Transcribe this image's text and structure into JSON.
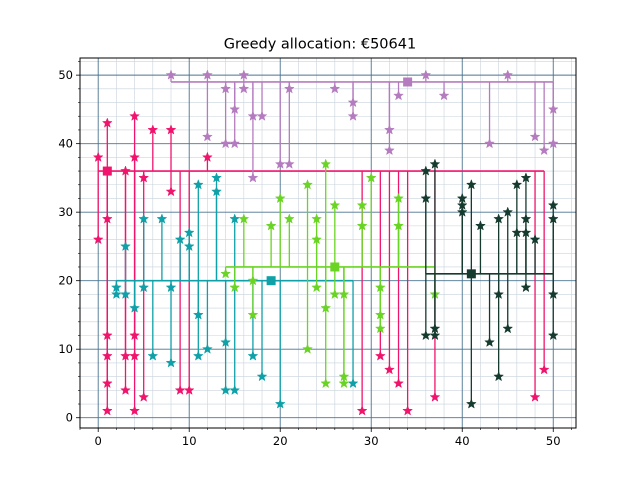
{
  "chart_data": {
    "type": "scatter",
    "title": "Greedy allocation: €50641",
    "xlabel": "",
    "ylabel": "",
    "xlim": [
      -2,
      52.5
    ],
    "ylim": [
      -1.5,
      52.5
    ],
    "x_ticks": [
      0,
      10,
      20,
      30,
      40,
      50
    ],
    "y_ticks": [
      0,
      10,
      20,
      30,
      40,
      50
    ],
    "grid": "major and minor",
    "legend": "none",
    "series": [
      {
        "color": "#f0146c",
        "center": [
          1,
          36
        ],
        "trunk_x": [
          0,
          49
        ],
        "points": [
          [
            0,
            38
          ],
          [
            0,
            26
          ],
          [
            1,
            43
          ],
          [
            1,
            29
          ],
          [
            1,
            12
          ],
          [
            1,
            9
          ],
          [
            1,
            5
          ],
          [
            1,
            1
          ],
          [
            3,
            36
          ],
          [
            3,
            9
          ],
          [
            3,
            4
          ],
          [
            4,
            44
          ],
          [
            4,
            38
          ],
          [
            4,
            12
          ],
          [
            4,
            9
          ],
          [
            4,
            1
          ],
          [
            5,
            35
          ],
          [
            5,
            3
          ],
          [
            6,
            42
          ],
          [
            8,
            42
          ],
          [
            8,
            33
          ],
          [
            9,
            4
          ],
          [
            10,
            4
          ],
          [
            12,
            38
          ],
          [
            29,
            1
          ],
          [
            31,
            9
          ],
          [
            32,
            7
          ],
          [
            33,
            5
          ],
          [
            34,
            1
          ],
          [
            37,
            3
          ],
          [
            48,
            3
          ],
          [
            49,
            7
          ]
        ]
      },
      {
        "color": "#b57bbf",
        "center": [
          34,
          49
        ],
        "trunk_x": [
          8,
          50
        ],
        "points": [
          [
            8,
            50
          ],
          [
            12,
            50
          ],
          [
            12,
            41
          ],
          [
            14,
            48
          ],
          [
            14,
            40
          ],
          [
            15,
            40
          ],
          [
            15,
            45
          ],
          [
            16,
            48
          ],
          [
            16,
            50
          ],
          [
            17,
            44
          ],
          [
            17,
            35
          ],
          [
            18,
            44
          ],
          [
            20,
            37
          ],
          [
            21,
            37
          ],
          [
            21,
            48
          ],
          [
            26,
            48
          ],
          [
            28,
            46
          ],
          [
            28,
            44
          ],
          [
            32,
            42
          ],
          [
            32,
            39
          ],
          [
            33,
            47
          ],
          [
            36,
            50
          ],
          [
            38,
            47
          ],
          [
            43,
            40
          ],
          [
            45,
            50
          ],
          [
            48,
            41
          ],
          [
            49,
            39
          ],
          [
            50,
            45
          ],
          [
            50,
            40
          ]
        ]
      },
      {
        "color": "#0fa0a8",
        "center": [
          19,
          20
        ],
        "trunk_x": [
          2,
          28
        ],
        "points": [
          [
            2,
            19
          ],
          [
            2,
            18
          ],
          [
            3,
            25
          ],
          [
            3,
            18
          ],
          [
            4,
            16
          ],
          [
            5,
            29
          ],
          [
            5,
            19
          ],
          [
            6,
            9
          ],
          [
            7,
            29
          ],
          [
            8,
            19
          ],
          [
            8,
            8
          ],
          [
            9,
            26
          ],
          [
            10,
            27
          ],
          [
            10,
            25
          ],
          [
            11,
            34
          ],
          [
            11,
            15
          ],
          [
            11,
            9
          ],
          [
            12,
            10
          ],
          [
            13,
            35
          ],
          [
            13,
            33
          ],
          [
            14,
            11
          ],
          [
            14,
            4
          ],
          [
            15,
            4
          ],
          [
            15,
            29
          ],
          [
            17,
            9
          ],
          [
            18,
            6
          ],
          [
            20,
            2
          ],
          [
            28,
            5
          ]
        ]
      },
      {
        "color": "#6ad424",
        "center": [
          26,
          22
        ],
        "trunk_x": [
          14,
          37
        ],
        "points": [
          [
            14,
            21
          ],
          [
            15,
            19
          ],
          [
            16,
            29
          ],
          [
            17,
            15
          ],
          [
            17,
            20
          ],
          [
            19,
            28
          ],
          [
            20,
            32
          ],
          [
            21,
            29
          ],
          [
            23,
            34
          ],
          [
            23,
            10
          ],
          [
            24,
            29
          ],
          [
            24,
            26
          ],
          [
            24,
            19
          ],
          [
            25,
            37
          ],
          [
            25,
            16
          ],
          [
            25,
            5
          ],
          [
            26,
            31
          ],
          [
            26,
            18
          ],
          [
            27,
            18
          ],
          [
            27,
            6
          ],
          [
            27,
            5
          ],
          [
            29,
            31
          ],
          [
            29,
            28
          ],
          [
            30,
            35
          ],
          [
            31,
            19
          ],
          [
            31,
            15
          ],
          [
            31,
            13
          ],
          [
            33,
            32
          ],
          [
            33,
            28
          ],
          [
            37,
            18
          ]
        ]
      },
      {
        "color": "#153a2e",
        "center": [
          41,
          21
        ],
        "trunk_x": [
          36,
          50
        ],
        "points": [
          [
            36,
            36
          ],
          [
            36,
            32
          ],
          [
            36,
            12
          ],
          [
            37,
            37
          ],
          [
            37,
            13
          ],
          [
            37,
            12
          ],
          [
            40,
            32
          ],
          [
            40,
            31
          ],
          [
            40,
            30
          ],
          [
            41,
            34
          ],
          [
            41,
            2
          ],
          [
            42,
            28
          ],
          [
            43,
            11
          ],
          [
            44,
            29
          ],
          [
            44,
            18
          ],
          [
            44,
            6
          ],
          [
            45,
            30
          ],
          [
            45,
            13
          ],
          [
            46,
            34
          ],
          [
            46,
            27
          ],
          [
            47,
            35
          ],
          [
            47,
            29
          ],
          [
            47,
            27
          ],
          [
            47,
            19
          ],
          [
            48,
            26
          ],
          [
            50,
            31
          ],
          [
            50,
            29
          ],
          [
            50,
            18
          ],
          [
            50,
            12
          ]
        ]
      }
    ]
  }
}
